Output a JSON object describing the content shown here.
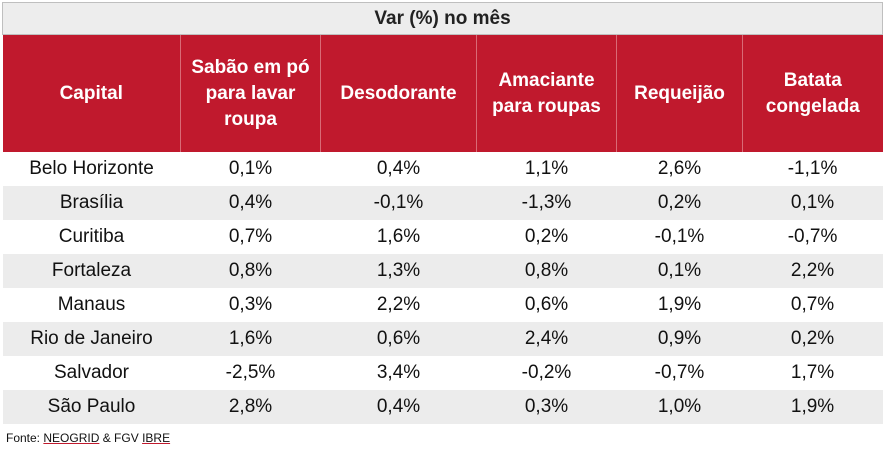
{
  "table": {
    "title": "Var (%) no mês",
    "headers": [
      "Capital",
      "Sabão em pó para lavar roupa",
      "Desodorante",
      "Amaciante para roupas",
      "Requeijão",
      "Batata congelada"
    ],
    "rows": [
      [
        "Belo Horizonte",
        "0,1%",
        "0,4%",
        "1,1%",
        "2,6%",
        "-1,1%"
      ],
      [
        "Brasília",
        "0,4%",
        "-0,1%",
        "-1,3%",
        "0,2%",
        "0,1%"
      ],
      [
        "Curitiba",
        "0,7%",
        "1,6%",
        "0,2%",
        "-0,1%",
        "-0,7%"
      ],
      [
        "Fortaleza",
        "0,8%",
        "1,3%",
        "0,8%",
        "0,1%",
        "2,2%"
      ],
      [
        "Manaus",
        "0,3%",
        "2,2%",
        "0,6%",
        "1,9%",
        "0,7%"
      ],
      [
        "Rio de Janeiro",
        "1,6%",
        "0,6%",
        "2,4%",
        "0,9%",
        "0,2%"
      ],
      [
        "Salvador",
        "-2,5%",
        "3,4%",
        "-0,2%",
        "-0,7%",
        "1,7%"
      ],
      [
        "São Paulo",
        "2,8%",
        "0,4%",
        "0,3%",
        "1,0%",
        "1,9%"
      ]
    ]
  },
  "footer": {
    "prefix": "Fonte: ",
    "source1": "NEOGRID",
    "sep": " & FGV ",
    "source2": "IBRE"
  },
  "colors": {
    "header_bg": "#c0192d",
    "stripe": "#ececec",
    "title_bg": "#ededed"
  }
}
